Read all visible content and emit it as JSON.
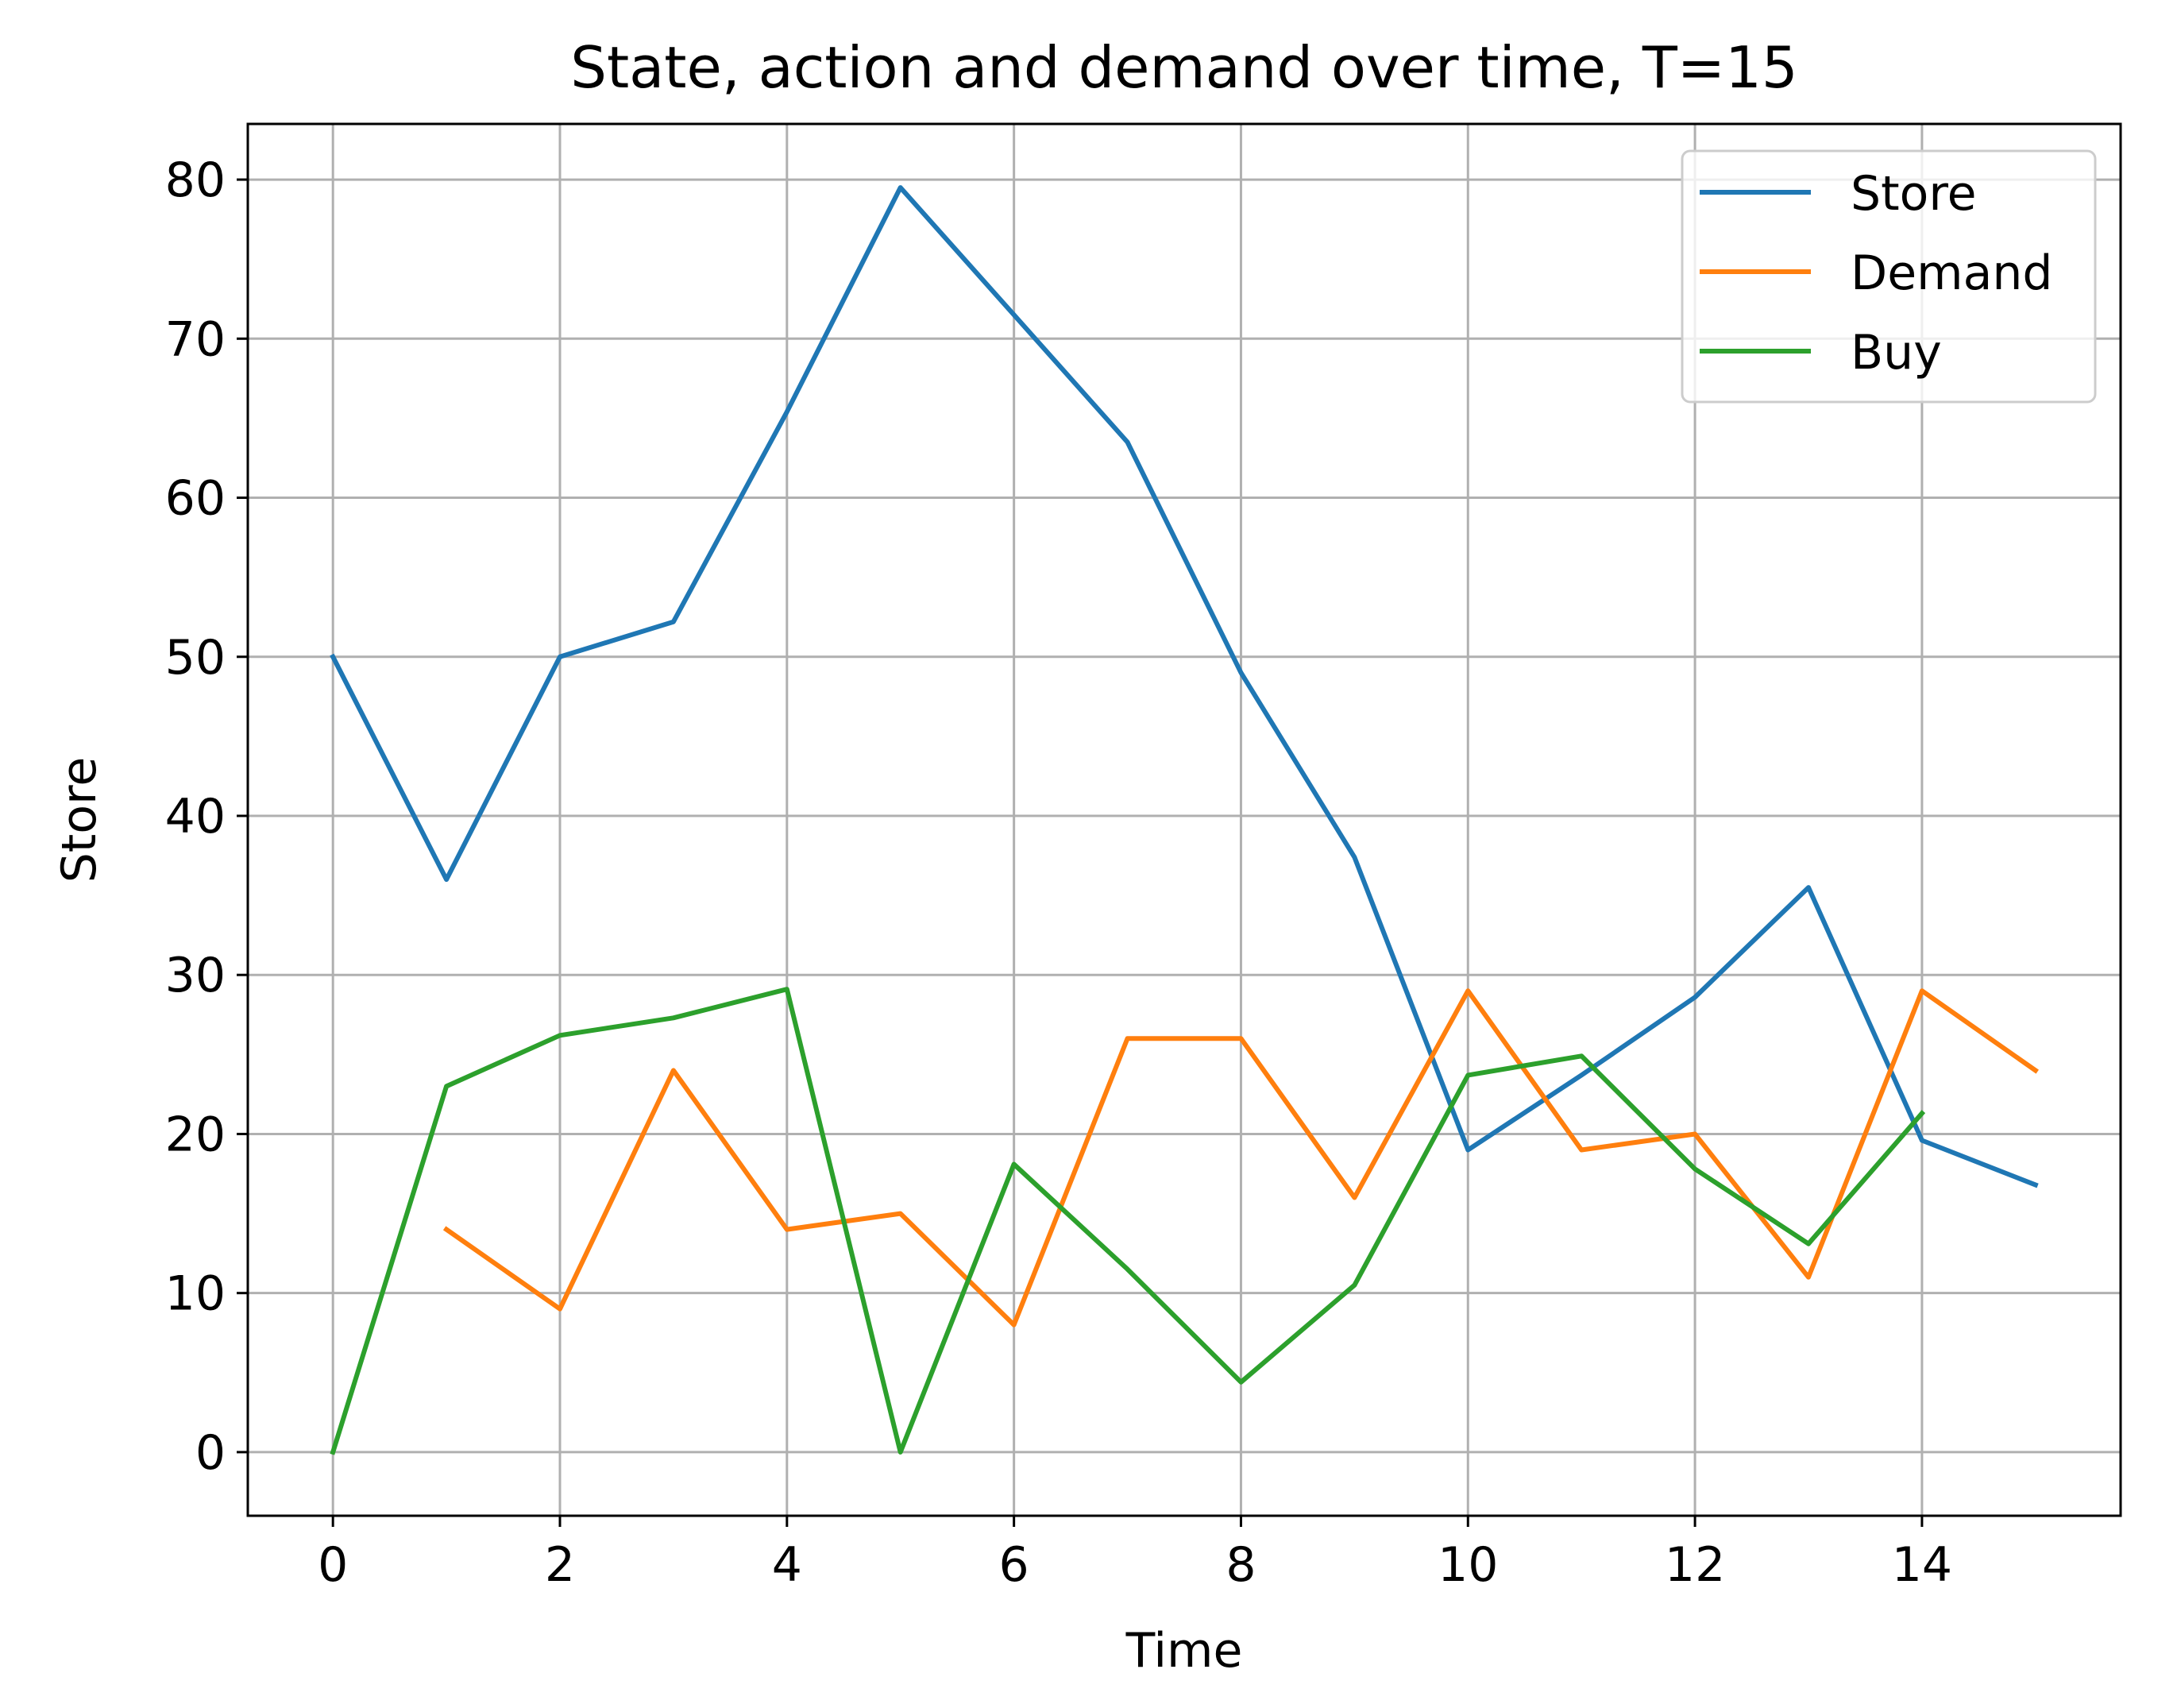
{
  "chart_data": {
    "type": "line",
    "title": "State, action and demand over time, T=15",
    "xlabel": "Time",
    "ylabel": "Store",
    "xlim": [
      -0.75,
      15.75
    ],
    "ylim": [
      -4,
      83.5
    ],
    "x_ticks": [
      0,
      2,
      4,
      6,
      8,
      10,
      12,
      14
    ],
    "y_ticks": [
      0,
      10,
      20,
      30,
      40,
      50,
      60,
      70,
      80
    ],
    "grid": true,
    "legend_position": "top-right",
    "series": [
      {
        "name": "Store",
        "color": "#1f77b4",
        "x": [
          0,
          1,
          2,
          3,
          4,
          5,
          6,
          7,
          8,
          9,
          10,
          11,
          12,
          13,
          14,
          15
        ],
        "values": [
          50,
          36,
          50,
          52.2,
          65.4,
          79.5,
          71.5,
          63.5,
          49,
          37.4,
          19,
          23.7,
          28.6,
          35.5,
          19.6,
          16.8
        ]
      },
      {
        "name": "Demand",
        "color": "#ff7f0e",
        "x": [
          1,
          2,
          3,
          4,
          5,
          6,
          7,
          8,
          9,
          10,
          11,
          12,
          13,
          14,
          15
        ],
        "values": [
          14,
          9,
          24,
          14,
          15,
          8,
          26,
          26,
          16,
          29,
          19,
          20,
          11,
          29,
          24
        ]
      },
      {
        "name": "Buy",
        "color": "#2ca02c",
        "x": [
          0,
          1,
          2,
          3,
          4,
          5,
          6,
          7,
          8,
          9,
          10,
          11,
          12,
          13,
          14
        ],
        "values": [
          0,
          23,
          26.2,
          27.3,
          29.1,
          0,
          18.1,
          11.5,
          4.4,
          10.5,
          23.7,
          24.9,
          17.8,
          13.1,
          21.3
        ]
      }
    ]
  }
}
